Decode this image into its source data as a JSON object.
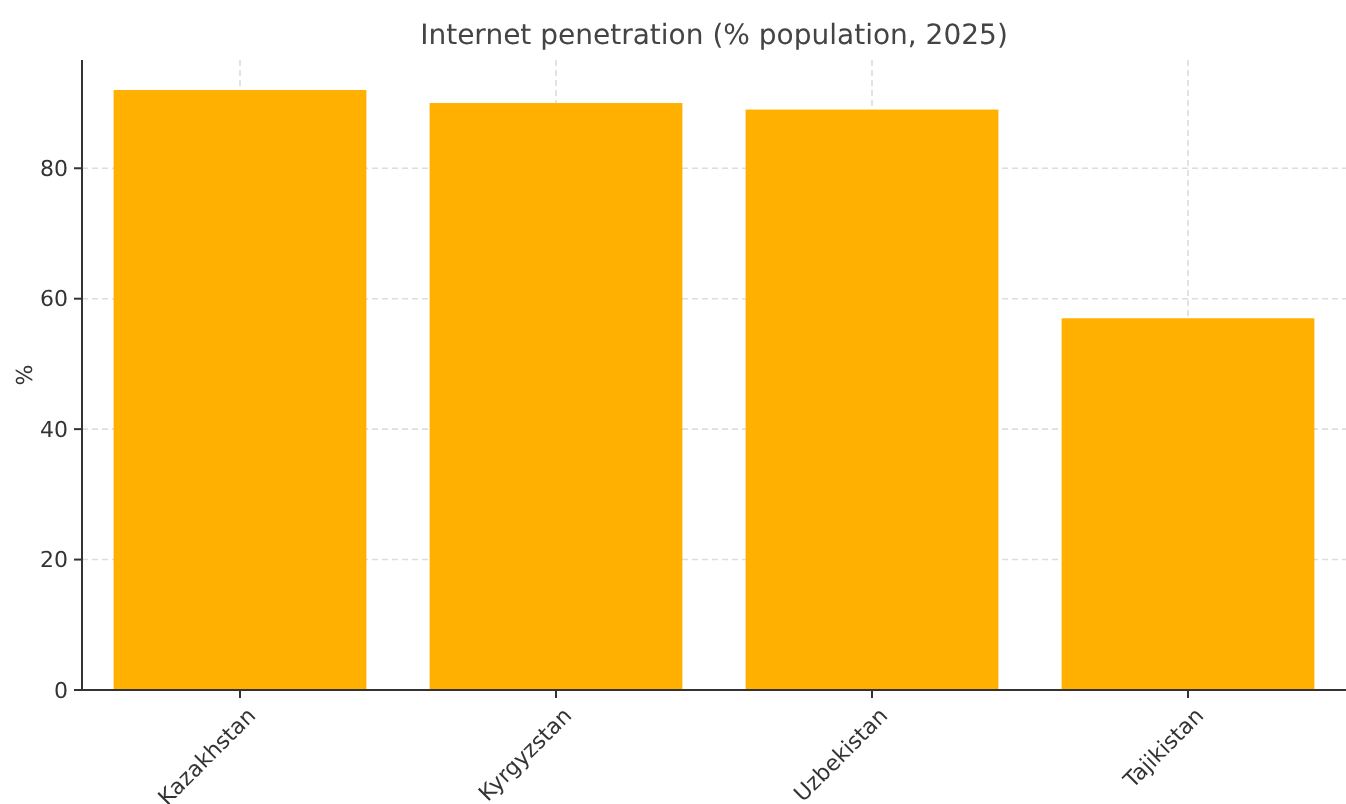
{
  "chart_data": {
    "type": "bar",
    "title": "Internet penetration (% population, 2025)",
    "ylabel": "%",
    "categories": [
      "Kazakhstan",
      "Kyrgyzstan",
      "Uzbekistan",
      "Tajikistan"
    ],
    "values": [
      92,
      90,
      89,
      57
    ],
    "color": "#ffb000",
    "ylim": [
      0,
      96.6
    ],
    "yticks": [
      0,
      20,
      40,
      60,
      80
    ],
    "grid": true
  }
}
